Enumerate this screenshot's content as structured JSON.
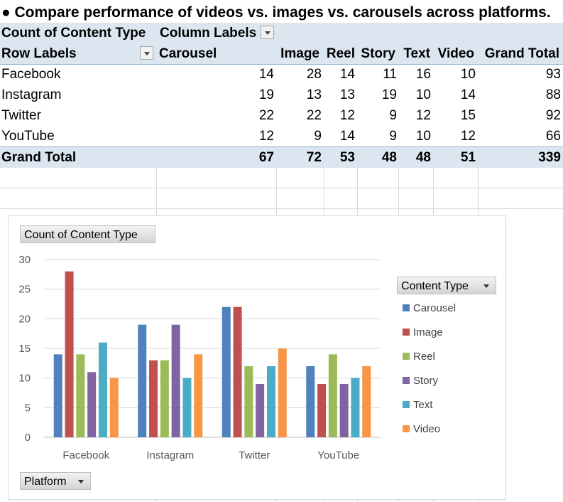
{
  "heading": "● Compare performance of videos vs. images vs. carousels across platforms.",
  "pivot": {
    "value_field": "Count of Content Type",
    "column_labels": "Column Labels",
    "row_labels": "Row Labels",
    "columns": [
      "Carousel",
      "Image",
      "Reel",
      "Story",
      "Text",
      "Video"
    ],
    "grand_total_label": "Grand Total",
    "rows": [
      {
        "label": "Facebook",
        "values": [
          "14",
          "28",
          "14",
          "11",
          "16",
          "10"
        ],
        "total": "93"
      },
      {
        "label": "Instagram",
        "values": [
          "19",
          "13",
          "13",
          "19",
          "10",
          "14"
        ],
        "total": "88"
      },
      {
        "label": "Twitter",
        "values": [
          "22",
          "22",
          "12",
          "9",
          "12",
          "15"
        ],
        "total": "92"
      },
      {
        "label": "YouTube",
        "values": [
          "12",
          "9",
          "14",
          "9",
          "10",
          "12"
        ],
        "total": "66"
      }
    ],
    "totals": {
      "label": "Grand Total",
      "values": [
        "67",
        "72",
        "53",
        "48",
        "48",
        "51"
      ],
      "total": "339"
    }
  },
  "chart": {
    "value_button": "Count of Content Type",
    "legend_button": "Content Type",
    "axis_button": "Platform"
  },
  "chart_data": {
    "type": "bar",
    "categories": [
      "Facebook",
      "Instagram",
      "Twitter",
      "YouTube"
    ],
    "series": [
      {
        "name": "Carousel",
        "color": "#4f81bd",
        "values": [
          14,
          19,
          22,
          12
        ]
      },
      {
        "name": "Image",
        "color": "#c0504d",
        "values": [
          28,
          13,
          22,
          9
        ]
      },
      {
        "name": "Reel",
        "color": "#9bbb59",
        "values": [
          14,
          13,
          12,
          14
        ]
      },
      {
        "name": "Story",
        "color": "#8064a2",
        "values": [
          11,
          19,
          9,
          9
        ]
      },
      {
        "name": "Text",
        "color": "#4bacc6",
        "values": [
          16,
          10,
          12,
          10
        ]
      },
      {
        "name": "Video",
        "color": "#f79646",
        "values": [
          10,
          14,
          15,
          12
        ]
      }
    ],
    "title": "",
    "xlabel": "",
    "ylabel": "",
    "ylim": [
      0,
      30
    ],
    "yticks": [
      0,
      5,
      10,
      15,
      20,
      25,
      30
    ],
    "grid": true,
    "legend_position": "right"
  }
}
